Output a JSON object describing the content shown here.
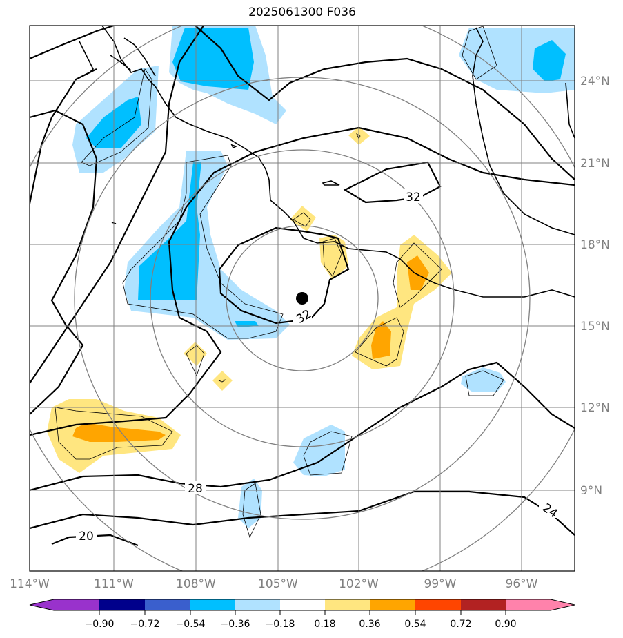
{
  "title": "2025061300 F036",
  "lon_ticks": [
    "114°W",
    "111°W",
    "108°W",
    "105°W",
    "102°W",
    "99°W",
    "96°W"
  ],
  "lat_ticks": [
    "24°N",
    "21°N",
    "18°N",
    "15°N",
    "12°N",
    "9°N"
  ],
  "contour_labels": [
    "32",
    "32",
    "28",
    "24",
    "20"
  ],
  "colorbar": {
    "tick_labels": [
      "−0.90",
      "−0.72",
      "−0.54",
      "−0.36",
      "−0.18",
      "0.18",
      "0.36",
      "0.54",
      "0.72",
      "0.90"
    ],
    "colors": [
      "#9932cc",
      "#00008b",
      "#3a5fcd",
      "#00bfff",
      "#b0e2ff",
      "#ffffff",
      "#ffe680",
      "#ffa500",
      "#ff4500",
      "#b22222",
      "#ff82ab"
    ]
  },
  "map": {
    "center_marker": {
      "lon": -104.1,
      "lat": 16.0
    },
    "lon_range": [
      -114,
      -94
    ],
    "lat_range": [
      6,
      26
    ],
    "shading_colors": {
      "light_blue": "#b0e2ff",
      "blue": "#00bfff",
      "light_yellow": "#ffe680",
      "orange": "#ffa500"
    }
  }
}
